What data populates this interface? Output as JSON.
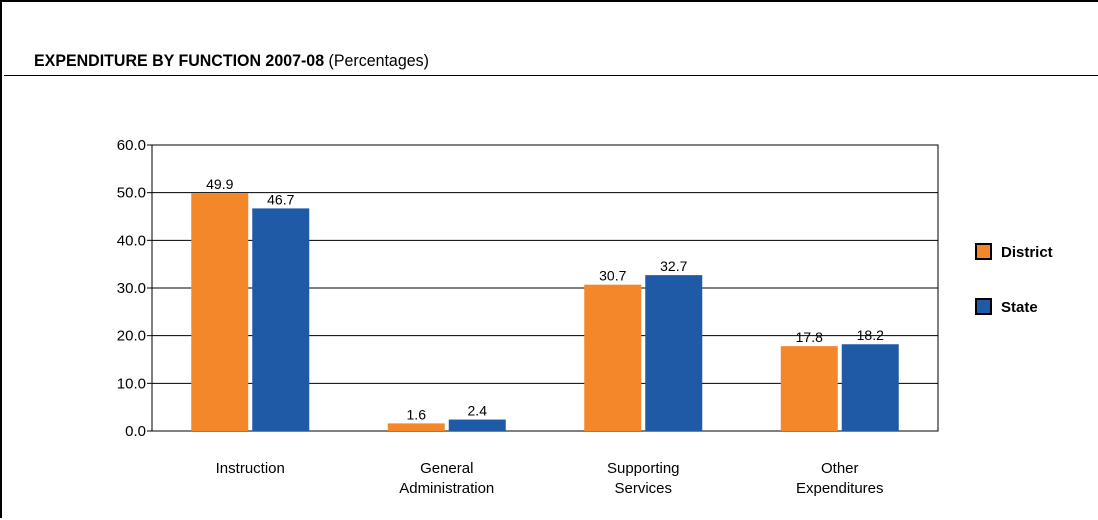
{
  "title": {
    "main": "EXPENDITURE BY FUNCTION 2007-08",
    "sub": "(Percentages)"
  },
  "chart_data": {
    "type": "bar",
    "categories": [
      [
        "Instruction"
      ],
      [
        "General",
        "Administration"
      ],
      [
        "Supporting",
        "Services"
      ],
      [
        "Other",
        "Expenditures"
      ]
    ],
    "series": [
      {
        "name": "District",
        "color": "#f4872a",
        "values": [
          49.9,
          1.6,
          30.7,
          17.8
        ]
      },
      {
        "name": "State",
        "color": "#1f5aa6",
        "values": [
          46.7,
          2.4,
          32.7,
          18.2
        ]
      }
    ],
    "ylim": [
      0,
      60
    ],
    "yticks": [
      "0.0",
      "10.0",
      "20.0",
      "30.0",
      "40.0",
      "50.0",
      "60.0"
    ],
    "grid": true,
    "legend": "right",
    "xlabel": "",
    "ylabel": ""
  }
}
